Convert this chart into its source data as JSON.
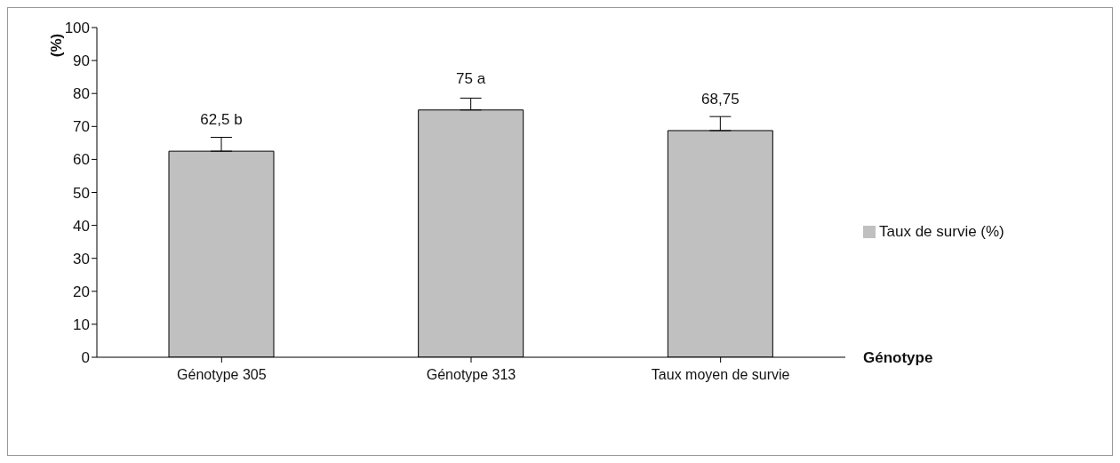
{
  "chart_data": {
    "type": "bar",
    "categories": [
      "Génotype 305",
      "Génotype 313",
      "Taux moyen de survie"
    ],
    "series": [
      {
        "name": "Taux de survie (%)",
        "color": "#c0c0c0",
        "values": [
          62.5,
          75,
          68.75
        ],
        "errors": [
          [
            62.5,
            66.7
          ],
          [
            75,
            78.6
          ],
          [
            68.75,
            73
          ]
        ],
        "value_labels": [
          "62,5 b",
          "75 a",
          "68,75"
        ]
      }
    ],
    "xlabel": "Génotype",
    "ylabel": "(%)",
    "ylim": [
      0,
      100
    ],
    "yticks": [
      0,
      10,
      20,
      30,
      40,
      50,
      60,
      70,
      80,
      90,
      100
    ],
    "grid": false,
    "legend": "right"
  }
}
